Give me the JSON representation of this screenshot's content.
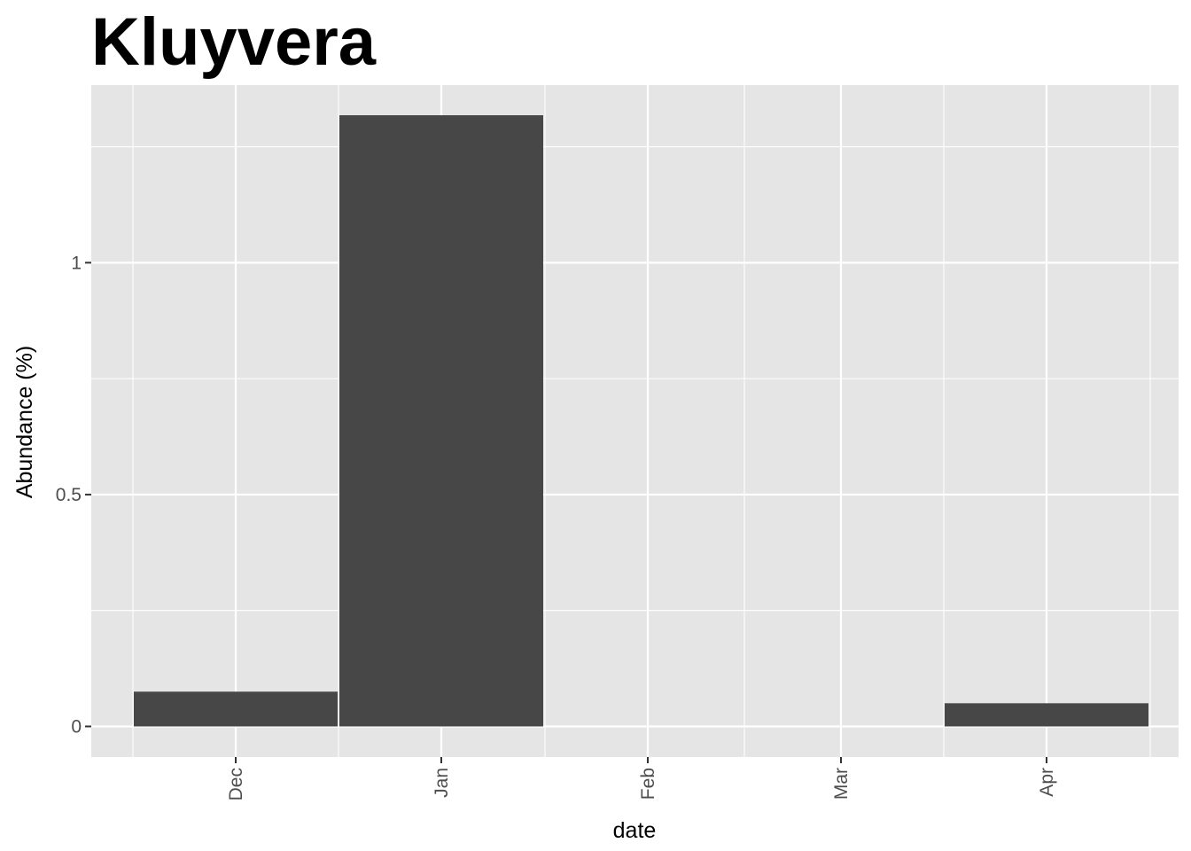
{
  "chart_data": {
    "type": "bar",
    "title": "Kluyvera",
    "xlabel": "date",
    "ylabel": "Abundance (%)",
    "x_tick_labels": [
      "Dec",
      "Jan",
      "Feb",
      "Mar",
      "Apr"
    ],
    "y_tick_labels": [
      "0",
      "0.5",
      "1"
    ],
    "y_ticks": [
      0,
      0.5,
      1
    ],
    "ylim": [
      -0.066,
      1.383
    ],
    "bars": [
      {
        "month": "Dec",
        "value": 0.075
      },
      {
        "month": "Jan",
        "value": 1.318
      },
      {
        "month": "Apr",
        "value": 0.05
      }
    ],
    "grid": true,
    "colors": {
      "panel": "#e5e5e5",
      "grid": "#ffffff",
      "bar": "#474747"
    }
  }
}
